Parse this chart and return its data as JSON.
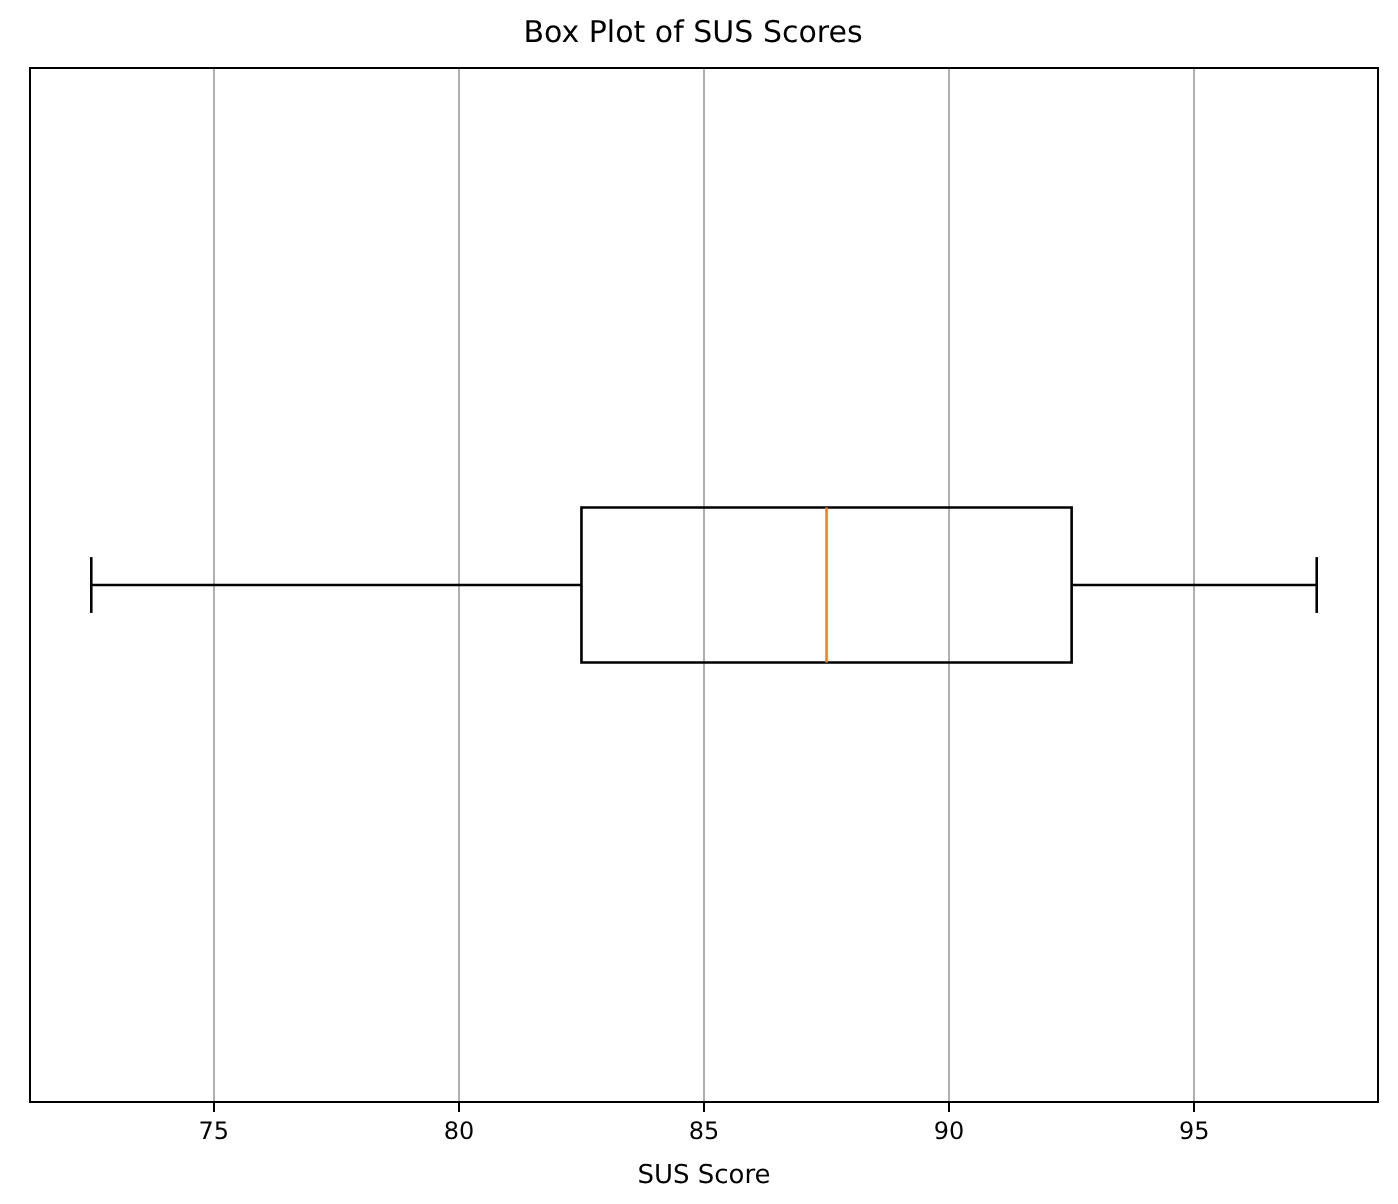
{
  "chart_data": {
    "type": "box",
    "orientation": "horizontal",
    "title": "Box Plot of SUS Scores",
    "xlabel": "SUS Score",
    "categories": [
      null
    ],
    "boxes": [
      {
        "low": 72.5,
        "q1": 82.5,
        "median": 87.5,
        "q3": 92.5,
        "high": 97.5
      }
    ],
    "color": "#000000",
    "xlim": [
      71.25,
      98.75
    ],
    "xticks": [
      75,
      80,
      85,
      90,
      95
    ],
    "grid": "x"
  }
}
